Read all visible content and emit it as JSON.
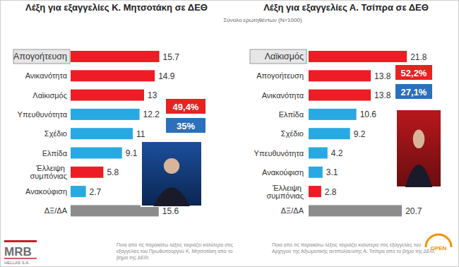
{
  "subtitle": "Σύνολο ερωτηθέντων (N=1000)",
  "chart_data": [
    {
      "type": "bar",
      "orientation": "horizontal",
      "title": "Λέξη για εξαγγελίες Κ. Μητσοτάκη σε ΔΕΘ",
      "categories": [
        "Απογοήτευση",
        "Ανικανότητα",
        "Λαϊκισμός",
        "Υπευθυνότητα",
        "Σχέδιο",
        "Ελπίδα",
        "Έλλειψη συμπόνιας",
        "Ανακούφιση",
        "ΔΞ/ΔΑ"
      ],
      "values": [
        15.7,
        14.9,
        13,
        12.2,
        11,
        9.1,
        5.8,
        2.7,
        15.6
      ],
      "colors": [
        "#ee1c25",
        "#ee1c25",
        "#ee1c25",
        "#29a9e1",
        "#29a9e1",
        "#29a9e1",
        "#ee1c25",
        "#29a9e1",
        "#8c8c8c"
      ],
      "xlim": [
        0,
        17.5
      ],
      "data_labels": true,
      "tick_labels": "y",
      "totals": [
        {
          "value": 49.4,
          "label": "49,4%",
          "color": "#e5231f"
        },
        {
          "value": 35,
          "label": "35%",
          "color": "#2b70bb"
        }
      ],
      "note": "Ποια από τις παρακάτω λέξεις ταιριάζει καλύτερα στις εξαγγελίες του Πρωθυπουργού Κ. Μητσοτάκη από το βήμα της ΔΕΘ;",
      "source": [
        "MRB",
        "HELLAS S.A."
      ]
    },
    {
      "type": "bar",
      "orientation": "horizontal",
      "title": "Λέξη για εξαγγελίες Α. Τσίπρα σε ΔΕΘ",
      "categories": [
        "Λαϊκισμός",
        "Απογοήτευση",
        "Ανικανότητα",
        "Ελπίδα",
        "Σχέδιο",
        "Υπευθυνότητα",
        "Ανακούφιση",
        "Έλλειψη συμπόνιας",
        "ΔΞ/ΔΑ"
      ],
      "values": [
        21.8,
        13.8,
        13.8,
        10.6,
        9.2,
        4.2,
        3.1,
        2.8,
        20.7
      ],
      "colors": [
        "#ee1c25",
        "#ee1c25",
        "#ee1c25",
        "#29a9e1",
        "#29a9e1",
        "#29a9e1",
        "#29a9e1",
        "#ee1c25",
        "#8c8c8c"
      ],
      "xlim": [
        0,
        23.5
      ],
      "data_labels": true,
      "tick_labels": "y",
      "totals": [
        {
          "value": 52.2,
          "label": "52,2%",
          "color": "#e5231f"
        },
        {
          "value": 27.1,
          "label": "27,1%",
          "color": "#2b70bb"
        }
      ],
      "note": "Ποια από τις παρακάτω λέξεις ταιριάζει καλύτερα στις εξαγγελίες του Αρχηγού της Αξιωματικής αντιπολίτευσης Α. Τσίπρα από το βήμα της ΔΕΘ;",
      "source": [
        "OPEN"
      ]
    }
  ]
}
